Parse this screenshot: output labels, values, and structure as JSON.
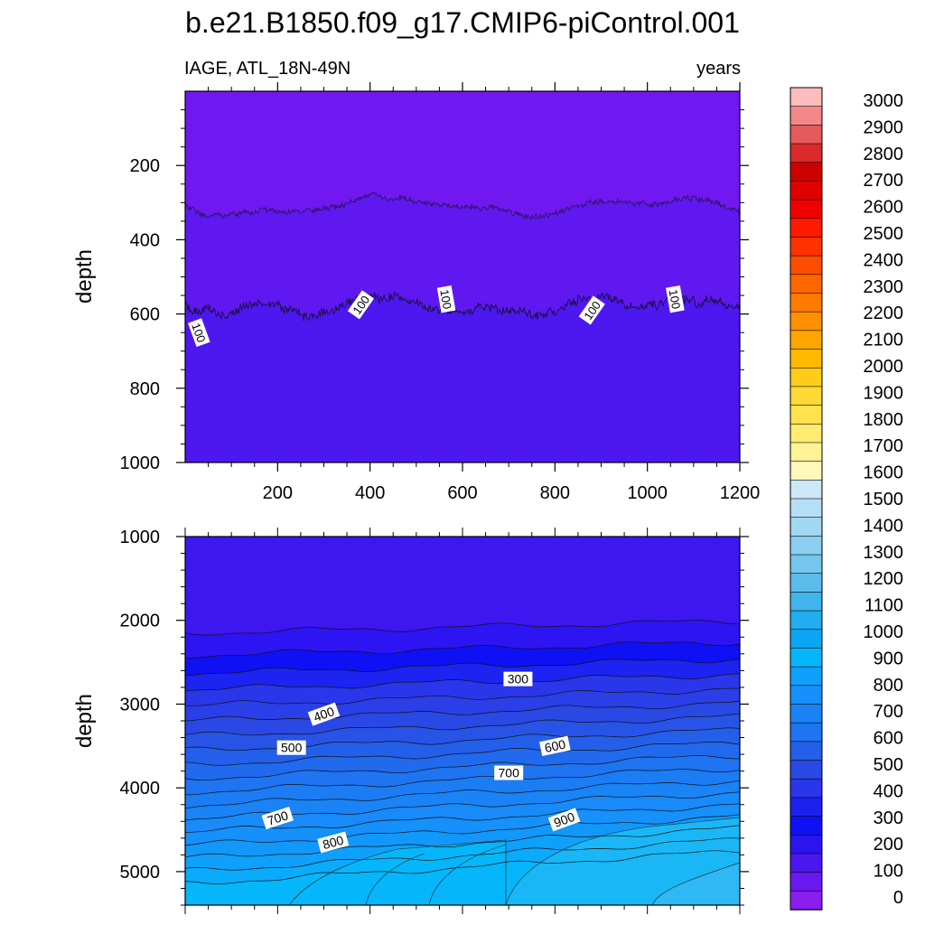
{
  "title": "b.e21.B1850.f09_g17.CMIP6-piControl.001",
  "chart_data": [
    {
      "type": "heatmap",
      "panel": "upper",
      "left_label": "IAGE, ATL_18N-49N",
      "right_label": "years",
      "xlabel": "",
      "ylabel": "depth",
      "xlim": [
        0,
        1200
      ],
      "ylim": [
        1000,
        0
      ],
      "xticks": [
        200,
        400,
        600,
        800,
        1000,
        1200
      ],
      "yticks": [
        200,
        400,
        600,
        800,
        1000
      ],
      "contour_interval": 100,
      "contour_labels": [
        "100",
        "100",
        "100",
        "100",
        "100"
      ],
      "fill_colors": [
        "#7118f0",
        "#4d17f0"
      ],
      "contours": [
        {
          "level": 50,
          "approx_depth": 310
        },
        {
          "level": 100,
          "approx_depth": 580
        }
      ]
    },
    {
      "type": "heatmap",
      "panel": "lower",
      "xlabel": "",
      "ylabel": "depth",
      "xlim": [
        0,
        1200
      ],
      "ylim": [
        5400,
        1000
      ],
      "yticks": [
        1000,
        2000,
        3000,
        4000,
        5000
      ],
      "contour_labels": [
        "300",
        "400",
        "500",
        "600",
        "700",
        "700",
        "800",
        "900"
      ],
      "contour_levels": [
        150,
        200,
        250,
        300,
        350,
        400,
        450,
        500,
        550,
        600,
        650,
        700,
        750,
        800,
        850,
        900,
        950,
        1000
      ]
    }
  ],
  "colorbar": {
    "labels": [
      "3000",
      "2900",
      "2800",
      "2700",
      "2600",
      "2500",
      "2400",
      "2300",
      "2200",
      "2100",
      "2000",
      "1900",
      "1800",
      "1700",
      "1600",
      "1500",
      "1400",
      "1300",
      "1200",
      "1100",
      "1000",
      "900",
      "800",
      "700",
      "600",
      "500",
      "400",
      "300",
      "200",
      "100",
      "0"
    ],
    "colors": [
      "#fbbcbc",
      "#f28888",
      "#e55a5a",
      "#db2a2a",
      "#cd0000",
      "#e00000",
      "#f00000",
      "#ff1a00",
      "#ff3300",
      "#ff4d00",
      "#ff6600",
      "#ff7b00",
      "#ff9000",
      "#ffa500",
      "#ffba00",
      "#ffcc1a",
      "#ffd933",
      "#ffe34d",
      "#ffec70",
      "#fff396",
      "#fff8bb",
      "#cde8f6",
      "#b5dff4",
      "#a2d7f2",
      "#8ccff0",
      "#74c6ee",
      "#5bbcec",
      "#42b4ec",
      "#22adf0",
      "#0aa6f4",
      "#06b6fa",
      "#0ea0fb",
      "#1690fb",
      "#1a83f6",
      "#1e74f1",
      "#235fe9",
      "#2a48e4",
      "#2a36ea",
      "#1e20f0",
      "#1010f5",
      "#2a14f0",
      "#4a17f0",
      "#6a18f0",
      "#8a1ef0"
    ]
  }
}
